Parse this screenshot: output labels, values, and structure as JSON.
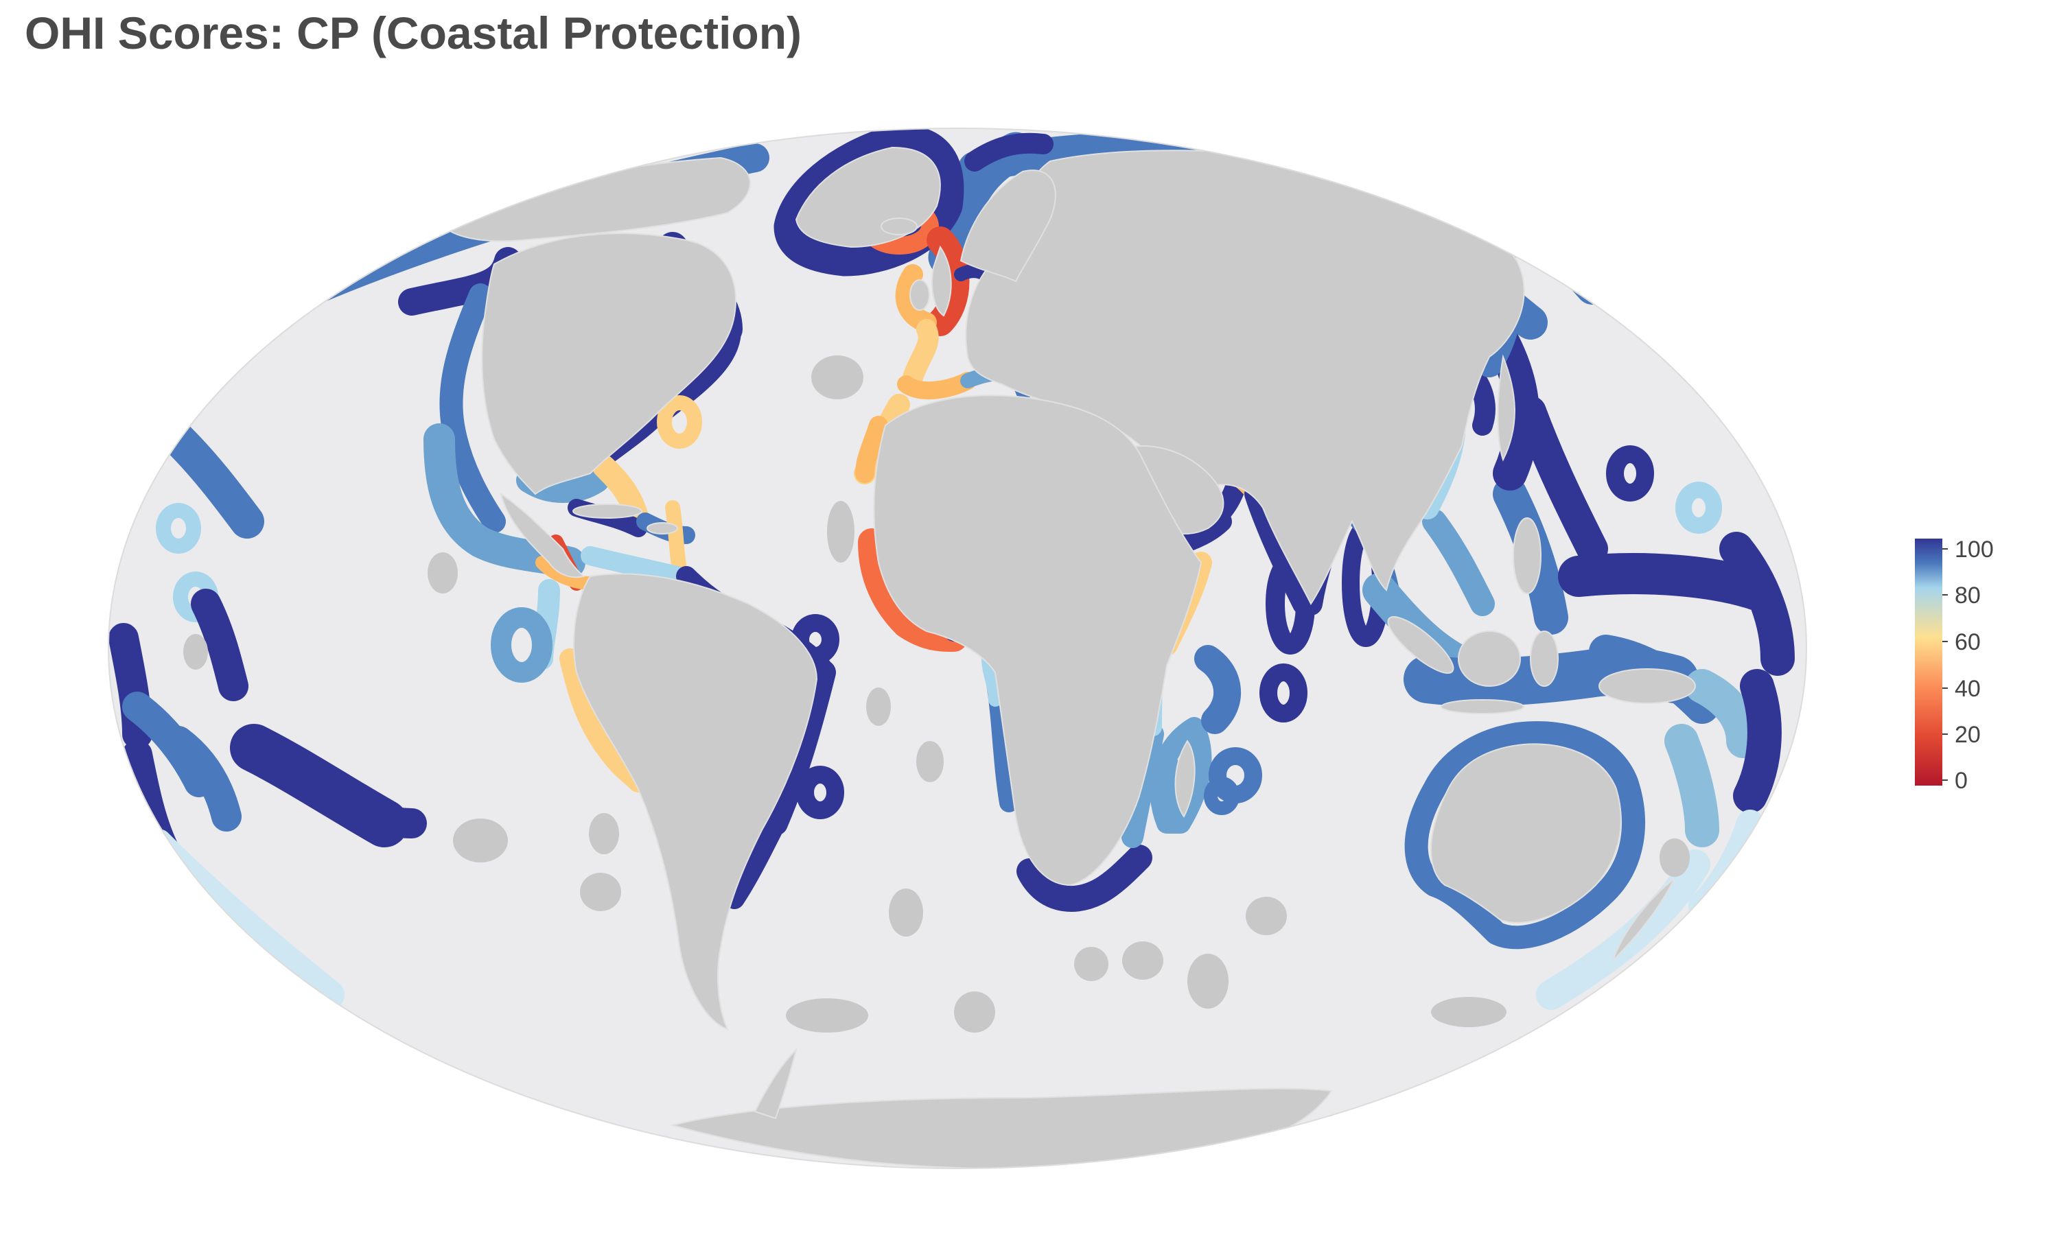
{
  "title": "OHI Scores: CP (Coastal Protection)",
  "colors": {
    "ocean": "#ebebed",
    "land": "#cbcbcb",
    "border": "#e0e0e0",
    "no_data": "#c8c8c8"
  },
  "legend": {
    "ticks": [
      "100",
      "80",
      "60",
      "40",
      "20",
      "0"
    ],
    "stops": [
      {
        "value": 0,
        "color": "#b2182b"
      },
      {
        "value": 20,
        "color": "#e34a33"
      },
      {
        "value": 40,
        "color": "#fc8d59"
      },
      {
        "value": 60,
        "color": "#fee090"
      },
      {
        "value": 80,
        "color": "#a6d5ec"
      },
      {
        "value": 90,
        "color": "#4a79bd"
      },
      {
        "value": 100,
        "color": "#313695"
      }
    ]
  }
}
